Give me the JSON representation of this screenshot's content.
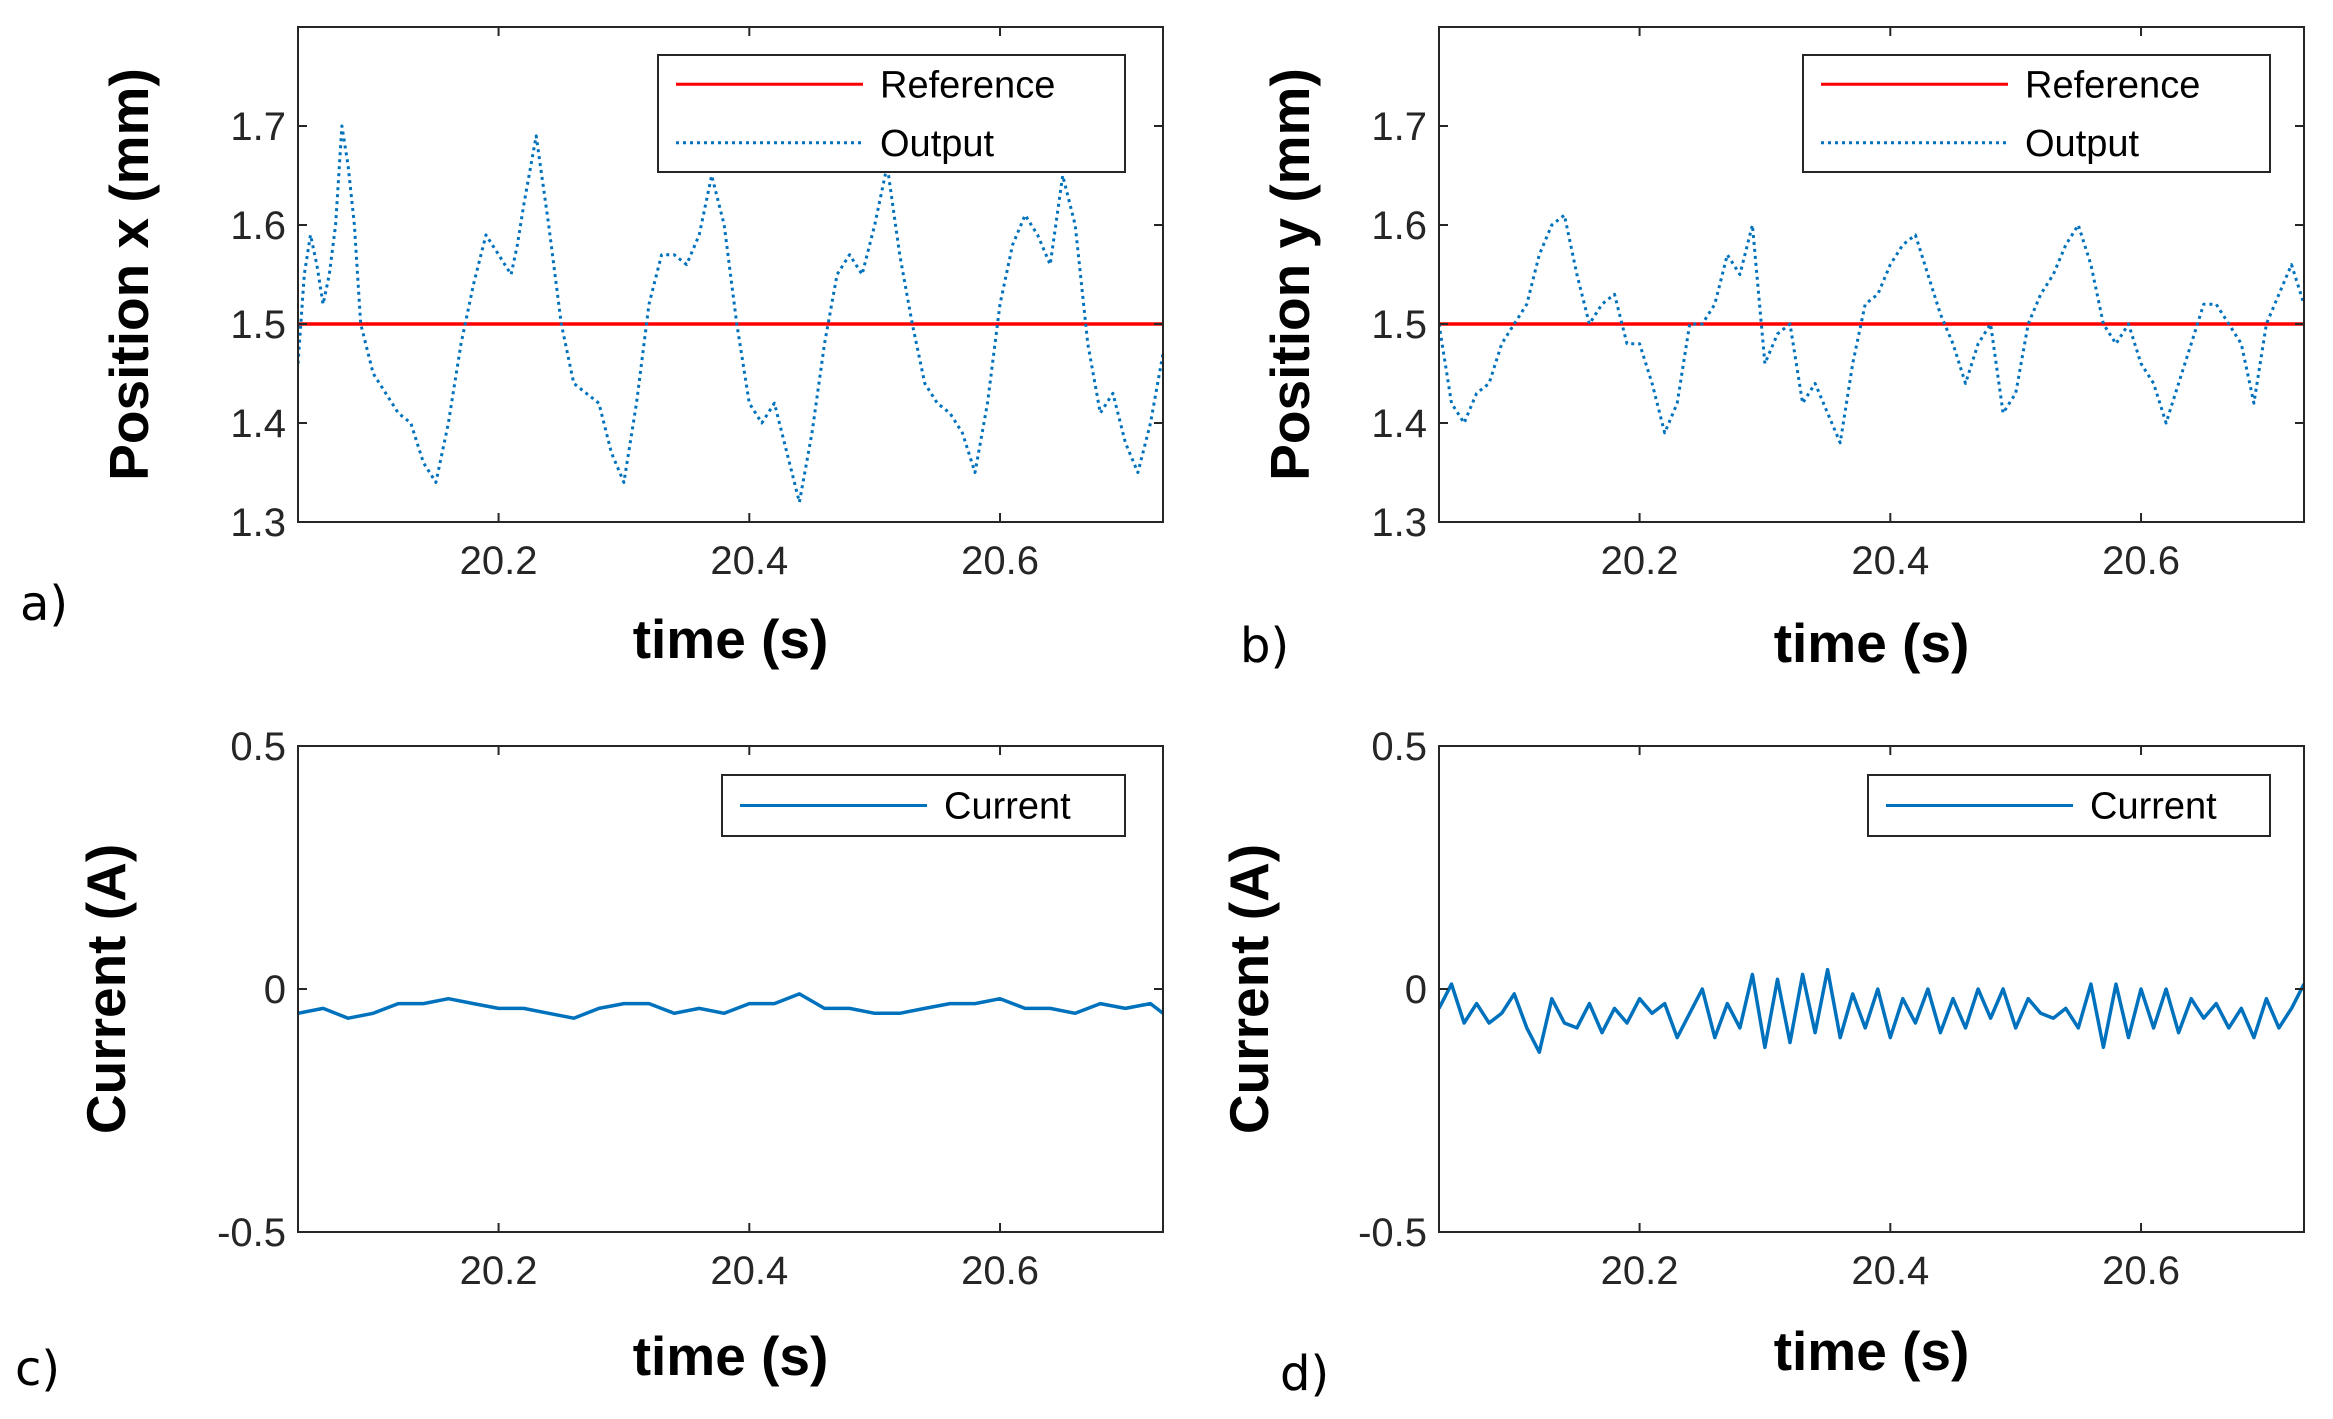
{
  "chart_data": [
    {
      "id": "a",
      "panel_label": "a)",
      "type": "line",
      "xlabel": "time (s)",
      "ylabel": "Position x (mm)",
      "xlim": [
        20.04,
        20.73
      ],
      "ylim": [
        1.3,
        1.8
      ],
      "xticks": [
        20.2,
        20.4,
        20.6
      ],
      "xtick_labels": [
        "20.2",
        "20.4",
        "20.6"
      ],
      "yticks": [
        1.3,
        1.4,
        1.5,
        1.6,
        1.7
      ],
      "ytick_labels": [
        "1.3",
        "1.4",
        "1.5",
        "1.6",
        "1.7"
      ],
      "grid": false,
      "legend_position": "top-right",
      "series": [
        {
          "name": "Reference",
          "color": "#ff0000",
          "style": "solid",
          "x": [
            20.04,
            20.73
          ],
          "y": [
            1.5,
            1.5
          ]
        },
        {
          "name": "Output",
          "color": "#0072bd",
          "style": "dotted",
          "x": [
            20.04,
            20.045,
            20.05,
            20.055,
            20.06,
            20.065,
            20.07,
            20.075,
            20.08,
            20.085,
            20.09,
            20.1,
            20.11,
            20.12,
            20.13,
            20.14,
            20.15,
            20.16,
            20.17,
            20.18,
            20.19,
            20.2,
            20.21,
            20.215,
            20.22,
            20.23,
            20.24,
            20.25,
            20.26,
            20.27,
            20.28,
            20.29,
            20.3,
            20.31,
            20.32,
            20.33,
            20.34,
            20.35,
            20.36,
            20.37,
            20.38,
            20.39,
            20.4,
            20.41,
            20.42,
            20.43,
            20.44,
            20.45,
            20.46,
            20.47,
            20.48,
            20.49,
            20.5,
            20.51,
            20.52,
            20.53,
            20.54,
            20.55,
            20.56,
            20.57,
            20.58,
            20.59,
            20.6,
            20.61,
            20.62,
            20.63,
            20.64,
            20.65,
            20.66,
            20.67,
            20.68,
            20.69,
            20.7,
            20.71,
            20.72,
            20.73
          ],
          "y": [
            1.46,
            1.55,
            1.59,
            1.56,
            1.52,
            1.55,
            1.6,
            1.7,
            1.66,
            1.6,
            1.5,
            1.45,
            1.43,
            1.41,
            1.4,
            1.36,
            1.34,
            1.4,
            1.48,
            1.54,
            1.59,
            1.57,
            1.55,
            1.58,
            1.62,
            1.69,
            1.6,
            1.5,
            1.44,
            1.43,
            1.42,
            1.37,
            1.34,
            1.42,
            1.52,
            1.57,
            1.57,
            1.56,
            1.59,
            1.65,
            1.6,
            1.5,
            1.42,
            1.4,
            1.42,
            1.37,
            1.32,
            1.39,
            1.48,
            1.55,
            1.57,
            1.55,
            1.6,
            1.66,
            1.57,
            1.5,
            1.44,
            1.42,
            1.41,
            1.39,
            1.35,
            1.42,
            1.52,
            1.58,
            1.61,
            1.59,
            1.56,
            1.65,
            1.6,
            1.48,
            1.41,
            1.43,
            1.38,
            1.35,
            1.4,
            1.47
          ]
        }
      ]
    },
    {
      "id": "b",
      "panel_label": "b)",
      "type": "line",
      "xlabel": "time (s)",
      "ylabel": "Position y (mm)",
      "xlim": [
        20.04,
        20.73
      ],
      "ylim": [
        1.3,
        1.8
      ],
      "xticks": [
        20.2,
        20.4,
        20.6
      ],
      "xtick_labels": [
        "20.2",
        "20.4",
        "20.6"
      ],
      "yticks": [
        1.3,
        1.4,
        1.5,
        1.6,
        1.7
      ],
      "ytick_labels": [
        "1.3",
        "1.4",
        "1.5",
        "1.6",
        "1.7"
      ],
      "grid": false,
      "legend_position": "top-right",
      "series": [
        {
          "name": "Reference",
          "color": "#ff0000",
          "style": "solid",
          "x": [
            20.04,
            20.73
          ],
          "y": [
            1.5,
            1.5
          ]
        },
        {
          "name": "Output",
          "color": "#0072bd",
          "style": "dotted",
          "x": [
            20.04,
            20.05,
            20.06,
            20.07,
            20.08,
            20.09,
            20.1,
            20.11,
            20.12,
            20.13,
            20.14,
            20.15,
            20.16,
            20.17,
            20.18,
            20.19,
            20.2,
            20.21,
            20.22,
            20.23,
            20.24,
            20.25,
            20.26,
            20.27,
            20.28,
            20.29,
            20.3,
            20.31,
            20.32,
            20.33,
            20.34,
            20.35,
            20.36,
            20.37,
            20.38,
            20.39,
            20.4,
            20.41,
            20.42,
            20.43,
            20.44,
            20.45,
            20.46,
            20.47,
            20.48,
            20.49,
            20.5,
            20.51,
            20.52,
            20.53,
            20.54,
            20.55,
            20.56,
            20.57,
            20.58,
            20.59,
            20.6,
            20.61,
            20.62,
            20.63,
            20.64,
            20.65,
            20.66,
            20.67,
            20.68,
            20.69,
            20.7,
            20.71,
            20.72,
            20.73
          ],
          "y": [
            1.5,
            1.42,
            1.4,
            1.43,
            1.44,
            1.48,
            1.5,
            1.52,
            1.57,
            1.6,
            1.61,
            1.55,
            1.5,
            1.52,
            1.53,
            1.48,
            1.48,
            1.44,
            1.39,
            1.42,
            1.5,
            1.5,
            1.52,
            1.57,
            1.55,
            1.6,
            1.46,
            1.49,
            1.5,
            1.42,
            1.44,
            1.41,
            1.38,
            1.46,
            1.52,
            1.53,
            1.56,
            1.58,
            1.59,
            1.55,
            1.51,
            1.48,
            1.44,
            1.48,
            1.5,
            1.41,
            1.43,
            1.5,
            1.53,
            1.55,
            1.58,
            1.6,
            1.56,
            1.5,
            1.48,
            1.5,
            1.46,
            1.44,
            1.4,
            1.44,
            1.48,
            1.52,
            1.52,
            1.5,
            1.48,
            1.42,
            1.5,
            1.53,
            1.56,
            1.52
          ]
        }
      ]
    },
    {
      "id": "c",
      "panel_label": "c)",
      "type": "line",
      "xlabel": "time (s)",
      "ylabel": "Current (A)",
      "xlim": [
        20.04,
        20.73
      ],
      "ylim": [
        -0.5,
        0.5
      ],
      "xticks": [
        20.2,
        20.4,
        20.6
      ],
      "xtick_labels": [
        "20.2",
        "20.4",
        "20.6"
      ],
      "yticks": [
        -0.5,
        0,
        0.5
      ],
      "ytick_labels": [
        "-0.5",
        "0",
        "0.5"
      ],
      "grid": false,
      "legend_position": "top-right",
      "series": [
        {
          "name": "Current",
          "color": "#0072bd",
          "style": "solid",
          "x": [
            20.04,
            20.06,
            20.08,
            20.1,
            20.12,
            20.14,
            20.16,
            20.18,
            20.2,
            20.22,
            20.24,
            20.26,
            20.28,
            20.3,
            20.32,
            20.34,
            20.36,
            20.38,
            20.4,
            20.42,
            20.44,
            20.46,
            20.48,
            20.5,
            20.52,
            20.54,
            20.56,
            20.58,
            20.6,
            20.62,
            20.64,
            20.66,
            20.68,
            20.7,
            20.72,
            20.73
          ],
          "y": [
            -0.05,
            -0.04,
            -0.06,
            -0.05,
            -0.03,
            -0.03,
            -0.02,
            -0.03,
            -0.04,
            -0.04,
            -0.05,
            -0.06,
            -0.04,
            -0.03,
            -0.03,
            -0.05,
            -0.04,
            -0.05,
            -0.03,
            -0.03,
            -0.01,
            -0.04,
            -0.04,
            -0.05,
            -0.05,
            -0.04,
            -0.03,
            -0.03,
            -0.02,
            -0.04,
            -0.04,
            -0.05,
            -0.03,
            -0.04,
            -0.03,
            -0.05
          ]
        }
      ]
    },
    {
      "id": "d",
      "panel_label": "d)",
      "type": "line",
      "xlabel": "time (s)",
      "ylabel": "Current (A)",
      "xlim": [
        20.04,
        20.73
      ],
      "ylim": [
        -0.5,
        0.5
      ],
      "xticks": [
        20.2,
        20.4,
        20.6
      ],
      "xtick_labels": [
        "20.2",
        "20.4",
        "20.6"
      ],
      "yticks": [
        -0.5,
        0,
        0.5
      ],
      "ytick_labels": [
        "-0.5",
        "0",
        "0.5"
      ],
      "grid": false,
      "legend_position": "top-right",
      "series": [
        {
          "name": "Current",
          "color": "#0072bd",
          "style": "solid",
          "x": [
            20.04,
            20.05,
            20.06,
            20.07,
            20.08,
            20.09,
            20.1,
            20.11,
            20.12,
            20.13,
            20.14,
            20.15,
            20.16,
            20.17,
            20.18,
            20.19,
            20.2,
            20.21,
            20.22,
            20.23,
            20.24,
            20.25,
            20.26,
            20.27,
            20.28,
            20.29,
            20.3,
            20.31,
            20.32,
            20.33,
            20.34,
            20.35,
            20.36,
            20.37,
            20.38,
            20.39,
            20.4,
            20.41,
            20.42,
            20.43,
            20.44,
            20.45,
            20.46,
            20.47,
            20.48,
            20.49,
            20.5,
            20.51,
            20.52,
            20.53,
            20.54,
            20.55,
            20.56,
            20.57,
            20.58,
            20.59,
            20.6,
            20.61,
            20.62,
            20.63,
            20.64,
            20.65,
            20.66,
            20.67,
            20.68,
            20.69,
            20.7,
            20.71,
            20.72,
            20.73
          ],
          "y": [
            -0.04,
            0.01,
            -0.07,
            -0.03,
            -0.07,
            -0.05,
            -0.01,
            -0.08,
            -0.13,
            -0.02,
            -0.07,
            -0.08,
            -0.03,
            -0.09,
            -0.04,
            -0.07,
            -0.02,
            -0.05,
            -0.03,
            -0.1,
            -0.05,
            0.0,
            -0.1,
            -0.03,
            -0.08,
            0.03,
            -0.12,
            0.02,
            -0.11,
            0.03,
            -0.09,
            0.04,
            -0.1,
            -0.01,
            -0.08,
            0.0,
            -0.1,
            -0.02,
            -0.07,
            0.0,
            -0.09,
            -0.02,
            -0.08,
            0.0,
            -0.06,
            0.0,
            -0.08,
            -0.02,
            -0.05,
            -0.06,
            -0.04,
            -0.08,
            0.01,
            -0.12,
            0.01,
            -0.1,
            0.0,
            -0.08,
            0.0,
            -0.09,
            -0.02,
            -0.06,
            -0.03,
            -0.08,
            -0.04,
            -0.1,
            -0.02,
            -0.08,
            -0.04,
            0.01
          ]
        }
      ]
    }
  ]
}
